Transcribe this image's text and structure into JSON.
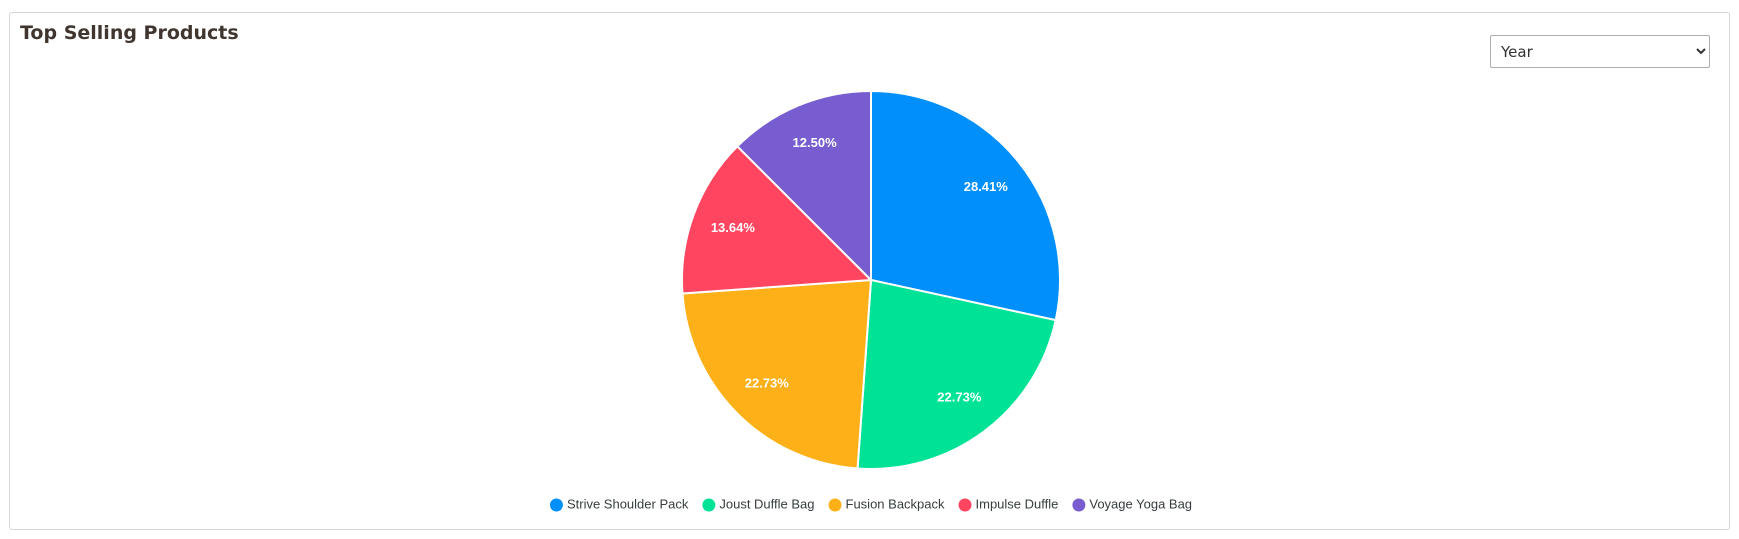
{
  "title": "Top Selling Products",
  "filter": {
    "selected": "Year"
  },
  "chart_data": {
    "type": "pie",
    "categories": [
      "Strive Shoulder Pack",
      "Joust Duffle Bag",
      "Fusion Backpack",
      "Impulse Duffle",
      "Voyage Yoga Bag"
    ],
    "values": [
      28.41,
      22.73,
      22.73,
      13.64,
      12.5
    ],
    "value_labels": [
      "28.41%",
      "22.73%",
      "22.73%",
      "13.64%",
      "12.50%"
    ],
    "colors": [
      "#008FFB",
      "#00E396",
      "#FEB019",
      "#FF4560",
      "#775DD0"
    ]
  }
}
